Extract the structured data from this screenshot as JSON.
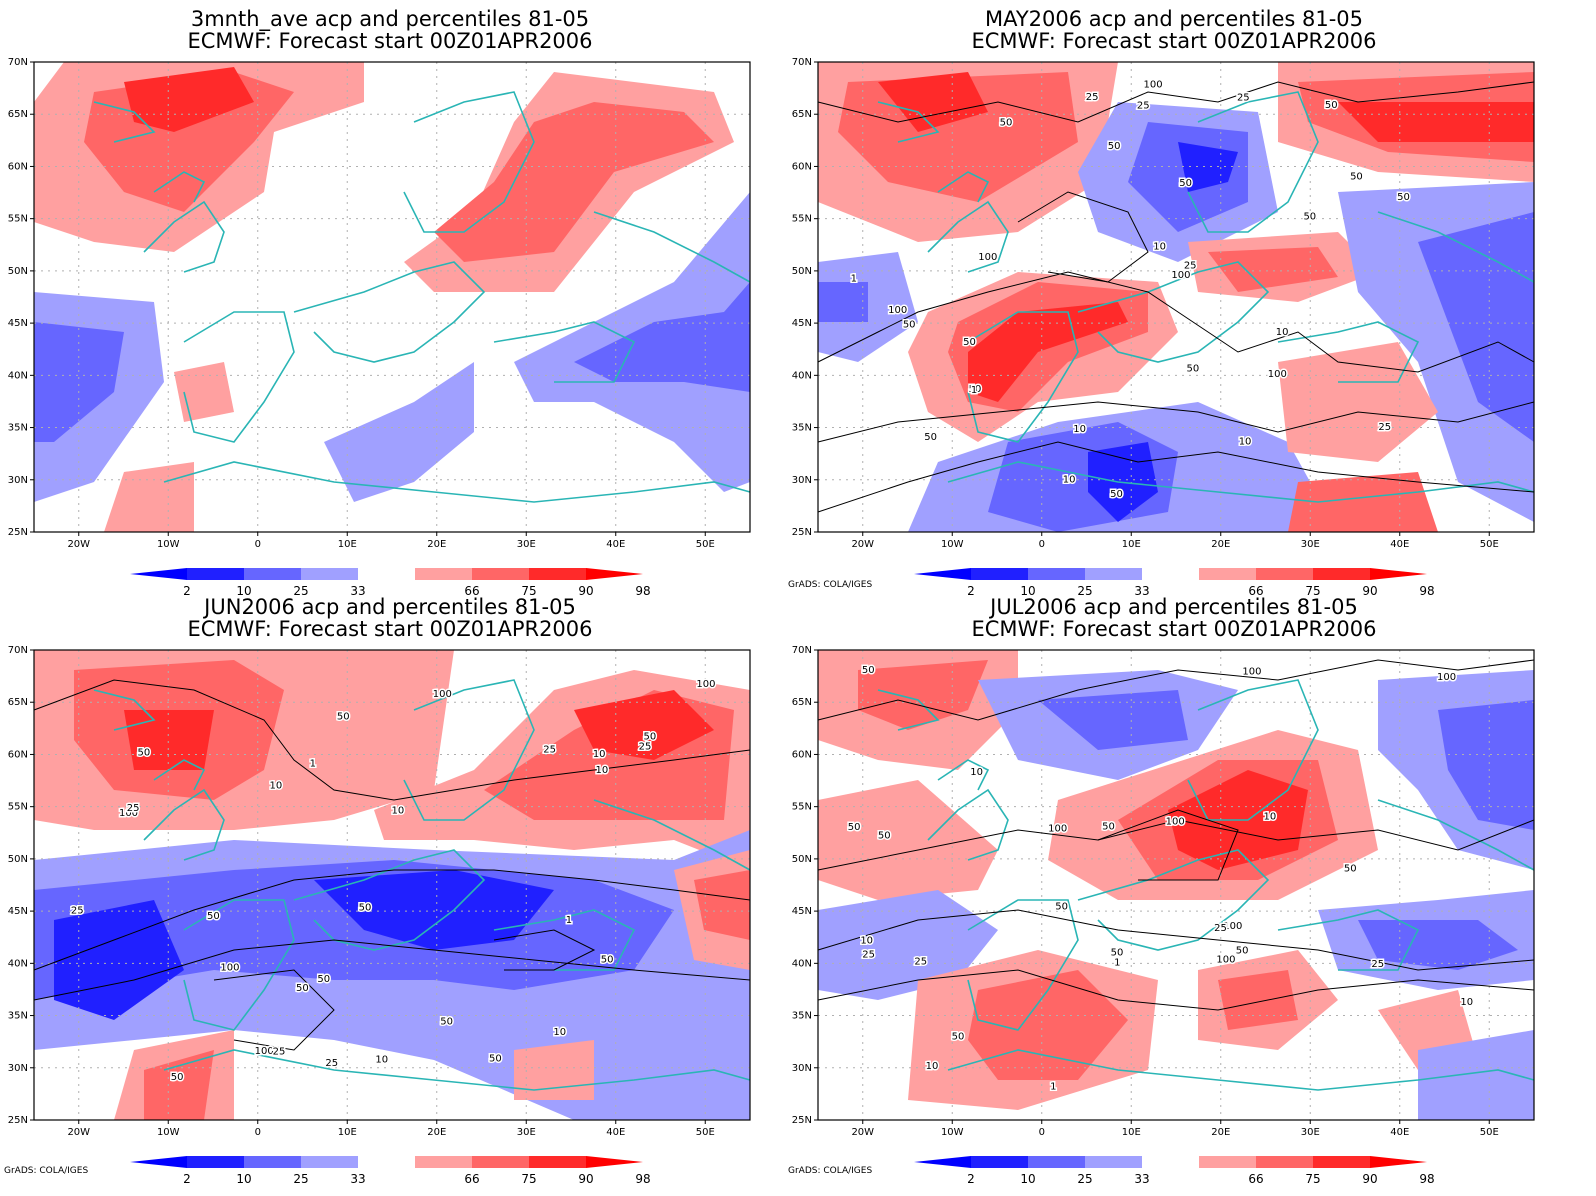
{
  "panels": [
    {
      "title_line1": "3mnth_ave acp and percentiles 81-05",
      "title_line2": "ECMWF: Forecast start 00Z01APR2006",
      "contour_labels": [],
      "credit": ""
    },
    {
      "title_line1": "MAY2006 acp and percentiles 81-05",
      "title_line2": "ECMWF: Forecast start 00Z01APR2006",
      "contour_labels": [
        "50",
        "50",
        "50",
        "50",
        "50",
        "100",
        "50",
        "50",
        "50",
        "50",
        "100",
        "100",
        "100",
        "100",
        "50",
        "25",
        "25",
        "1",
        "1",
        "10",
        "10",
        "25",
        "50",
        "25",
        "10",
        "10",
        "50",
        "25",
        "50",
        "10"
      ],
      "credit": "GrADS: COLA/IGES"
    },
    {
      "title_line1": "JUN2006 acp and percentiles 81-05",
      "title_line2": "ECMWF: Forecast start 00Z01APR2006",
      "contour_labels": [
        "50",
        "50",
        "100",
        "50",
        "50",
        "100",
        "100",
        "50",
        "50",
        "100",
        "50",
        "25",
        "25",
        "50",
        "25",
        "50",
        "50",
        "25",
        "10",
        "1",
        "10",
        "10",
        "25",
        "50",
        "100",
        "10",
        "1",
        "10",
        "25",
        "10"
      ],
      "credit": "GrADS: COLA/IGES"
    },
    {
      "title_line1": "JUL2006 acp and percentiles 81-05",
      "title_line2": "ECMWF: Forecast start 00Z01APR2006",
      "contour_labels": [
        "50",
        "50",
        "100",
        "100",
        "50",
        "50",
        "50",
        "100",
        "100",
        "100",
        "50",
        "50",
        "25",
        "50",
        "25",
        "10",
        "10",
        "25",
        "1",
        "10",
        "10",
        "25",
        "1",
        "10",
        "50",
        "100"
      ],
      "credit": "GrADS: COLA/IGES"
    }
  ],
  "map_axes": {
    "lat_labels": [
      "70N",
      "65N",
      "60N",
      "55N",
      "50N",
      "45N",
      "40N",
      "35N",
      "30N",
      "25N"
    ],
    "lon_labels": [
      "20W",
      "10W",
      "0",
      "10E",
      "20E",
      "30E",
      "40E",
      "50E"
    ],
    "lat_range": [
      25,
      70
    ],
    "lon_range": [
      -25,
      55
    ]
  },
  "colorbar": {
    "labels": [
      "2",
      "10",
      "25",
      "33",
      "66",
      "75",
      "90",
      "98"
    ],
    "colors": {
      "lt2": "#0000ff",
      "b10": "#2020ff",
      "b25": "#6666ff",
      "b33": "#a0a0ff",
      "r66": "#ffa0a0",
      "r75": "#ff6666",
      "r90": "#ff2a2a",
      "r98": "#ff0000"
    }
  },
  "colors": {
    "coast": "#2ab5b5",
    "contour": "#000000",
    "grid": "#b0b0b0"
  }
}
